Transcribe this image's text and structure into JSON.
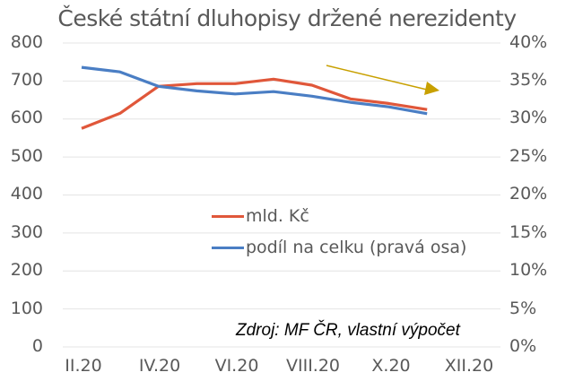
{
  "chart_data": {
    "type": "line",
    "title": "České státní dluhopisy držené nerezidenty",
    "xlabel": "",
    "ylabel": "",
    "x": [
      "II.20",
      "III.20",
      "IV.20",
      "V.20",
      "VI.20",
      "VII.20",
      "VIII.20",
      "IX.20",
      "X.20",
      "XI.20"
    ],
    "x_tick_labels": [
      "II.20",
      "IV.20",
      "VI.20",
      "VIII.20",
      "X.20",
      "XII.20"
    ],
    "series": [
      {
        "name": "mld. Kč",
        "axis": "left",
        "color": "#E0573A",
        "values": [
          575,
          615,
          686,
          693,
          693,
          705,
          689,
          653,
          641,
          625
        ]
      },
      {
        "name": "podíl na celku (pravá osa)",
        "axis": "right",
        "color": "#4A7EC4",
        "values": [
          36.8,
          36.2,
          34.3,
          33.7,
          33.3,
          33.6,
          33.0,
          32.2,
          31.6,
          30.7
        ]
      }
    ],
    "ylim": [
      0,
      800
    ],
    "y_ticks": [
      "0",
      "100",
      "200",
      "300",
      "400",
      "500",
      "600",
      "700",
      "800"
    ],
    "y2lim": [
      0,
      40
    ],
    "y2_ticks": [
      "0%",
      "5%",
      "10%",
      "15%",
      "20%",
      "25%",
      "30%",
      "35%",
      "40%"
    ],
    "grid": true,
    "legend_position": "center-inside",
    "annotations": [
      {
        "type": "arrow",
        "color": "#C8A000",
        "direction": "down-right",
        "meaning": "declining trend"
      },
      {
        "type": "text",
        "text": "Zdroj: MF ČR, vlastní výpočet"
      }
    ]
  },
  "title": "České státní dluhopisy držené nerezidenty",
  "legend": {
    "items": [
      {
        "label": "mld. Kč",
        "color": "#E0573A"
      },
      {
        "label": "podíl na celku (pravá osa)",
        "color": "#4A7EC4"
      }
    ]
  },
  "source": "Zdroj: MF ČR, vlastní výpočet",
  "y_left": [
    "800",
    "700",
    "600",
    "500",
    "400",
    "300",
    "200",
    "100",
    "0"
  ],
  "y_right": [
    "40%",
    "35%",
    "30%",
    "25%",
    "20%",
    "15%",
    "10%",
    "5%",
    "0%"
  ],
  "x_labels": [
    "II.20",
    "IV.20",
    "VI.20",
    "VIII.20",
    "X.20",
    "XII.20"
  ]
}
